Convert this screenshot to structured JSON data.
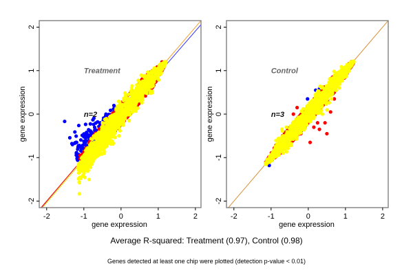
{
  "chart_data": [
    {
      "type": "scatter",
      "title": "Treatment",
      "annotation": "n=2",
      "xlabel": "gene expression",
      "ylabel": "gene expression",
      "xlim": [
        -2.2,
        2.15
      ],
      "ylim": [
        -2.15,
        2.15
      ],
      "xticks": [
        -2,
        -1,
        0,
        1,
        2
      ],
      "yticks": [
        -2,
        -1,
        0,
        1,
        2
      ],
      "grid": false,
      "reference_lines": [
        {
          "name": "identity",
          "color": "#f0a030",
          "intercept": 0.0,
          "slope": 1.0
        },
        {
          "name": "fit",
          "color": "#3333ff",
          "intercept": -0.06,
          "slope": 0.985
        },
        {
          "name": "lower-red",
          "color": "#ff0000",
          "intercept": 0.0,
          "slope": 1.0,
          "x_range": [
            -2.2,
            -1.0
          ]
        },
        {
          "name": "lower-yellow",
          "color": "#ffff00",
          "intercept": -0.04,
          "slope": 1.0,
          "x_range": [
            -2.2,
            -1.0
          ]
        }
      ],
      "cloud": {
        "x_range": [
          -1.15,
          1.2
        ],
        "spread": 0.16,
        "blue_side": "above",
        "blue_x_range": [
          -1.15,
          0.0
        ],
        "blue_spread": 0.22,
        "red_outliers": [
          [
            -1.1,
            -0.95
          ],
          [
            0.4,
            0.5
          ],
          [
            0.6,
            0.7
          ],
          [
            0.9,
            1.0
          ],
          [
            1.1,
            1.2
          ]
        ]
      },
      "series": [
        {
          "name": "non-detected / blue",
          "color": "#0000ff"
        },
        {
          "name": "red",
          "color": "#ff0000"
        },
        {
          "name": "yellow",
          "color": "#ffff00"
        }
      ]
    },
    {
      "type": "scatter",
      "title": "Control",
      "annotation": "n=3",
      "xlabel": "gene expression",
      "ylabel": "gene expression",
      "xlim": [
        -2.2,
        2.15
      ],
      "ylim": [
        -2.15,
        2.15
      ],
      "xticks": [
        -2,
        -1,
        0,
        1,
        2
      ],
      "yticks": [
        -2,
        -1,
        0,
        1,
        2
      ],
      "grid": false,
      "reference_lines": [
        {
          "name": "identity",
          "color": "#d8903a",
          "intercept": 0.0,
          "slope": 1.0
        }
      ],
      "cloud": {
        "x_range": [
          -1.15,
          1.22
        ],
        "spread": 0.13,
        "blue_side": "none",
        "red_outliers": [
          [
            -0.4,
            0.0
          ],
          [
            -0.1,
            -0.15
          ],
          [
            0.15,
            -0.3
          ],
          [
            0.3,
            -0.35
          ],
          [
            0.45,
            -0.2
          ],
          [
            0.5,
            -0.45
          ],
          [
            0.05,
            -0.65
          ],
          [
            0.6,
            0.05
          ],
          [
            0.25,
            -0.2
          ],
          [
            -0.2,
            -0.45
          ],
          [
            0.7,
            0.35
          ],
          [
            1.2,
            1.15
          ],
          [
            -0.3,
            0.15
          ]
        ],
        "blue_outliers": [
          [
            0.2,
            0.55
          ],
          [
            0.3,
            0.58
          ],
          [
            -0.02,
            0.35
          ],
          [
            -1.05,
            -1.18
          ],
          [
            -0.9,
            -0.95
          ]
        ]
      },
      "series": [
        {
          "name": "blue",
          "color": "#0000ff"
        },
        {
          "name": "red",
          "color": "#ff0000"
        },
        {
          "name": "yellow",
          "color": "#ffff00"
        }
      ]
    }
  ],
  "captions": {
    "main": "Average R-squared: Treatment (0.97), Control (0.98)",
    "sub": "Genes detected at least one chip were plotted (detection p-value < 0.01)"
  }
}
